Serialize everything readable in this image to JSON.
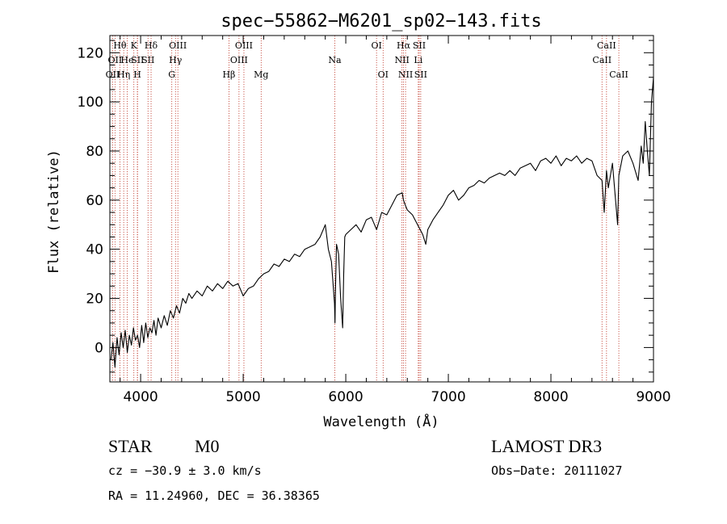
{
  "chart_data": {
    "type": "line",
    "title": "spec−55862−M6201_sp02−143.fits",
    "xlabel": "Wavelength (Å)",
    "ylabel": "Flux (relative)",
    "xlim": [
      3700,
      9000
    ],
    "ylim": [
      -14,
      127
    ],
    "xticks": [
      {
        "value": 4000,
        "label": "4000"
      },
      {
        "value": 5000,
        "label": "5000"
      },
      {
        "value": 6000,
        "label": "6000"
      },
      {
        "value": 7000,
        "label": "7000"
      },
      {
        "value": 8000,
        "label": "8000"
      },
      {
        "value": 9000,
        "label": "9000"
      }
    ],
    "yticks": [
      {
        "value": 0,
        "label": "0"
      },
      {
        "value": 20,
        "label": "20"
      },
      {
        "value": 40,
        "label": "40"
      },
      {
        "value": 60,
        "label": "60"
      },
      {
        "value": 80,
        "label": "80"
      },
      {
        "value": 100,
        "label": "100"
      },
      {
        "value": 120,
        "label": "120"
      }
    ],
    "x_minor_step": 200,
    "y_minor_step": 5,
    "line_color": "#000000",
    "marker_color": "#c0392b",
    "series": [
      {
        "name": "flux",
        "x": [
          3710,
          3730,
          3750,
          3770,
          3790,
          3810,
          3830,
          3850,
          3870,
          3890,
          3910,
          3930,
          3950,
          3970,
          3990,
          4010,
          4030,
          4050,
          4070,
          4090,
          4110,
          4130,
          4150,
          4170,
          4200,
          4230,
          4260,
          4290,
          4320,
          4350,
          4380,
          4410,
          4440,
          4470,
          4500,
          4550,
          4600,
          4650,
          4700,
          4750,
          4800,
          4850,
          4900,
          4950,
          5000,
          5050,
          5100,
          5150,
          5200,
          5250,
          5300,
          5350,
          5400,
          5450,
          5500,
          5550,
          5600,
          5650,
          5700,
          5750,
          5800,
          5830,
          5860,
          5890,
          5895,
          5900,
          5910,
          5930,
          5950,
          5970,
          5980,
          5990,
          6000,
          6050,
          6100,
          6150,
          6200,
          6250,
          6300,
          6350,
          6400,
          6450,
          6500,
          6550,
          6563,
          6580,
          6600,
          6650,
          6700,
          6750,
          6780,
          6800,
          6850,
          6900,
          6950,
          7000,
          7050,
          7100,
          7150,
          7200,
          7250,
          7300,
          7350,
          7400,
          7450,
          7500,
          7550,
          7600,
          7650,
          7700,
          7750,
          7800,
          7850,
          7900,
          7950,
          8000,
          8050,
          8100,
          8150,
          8200,
          8250,
          8300,
          8350,
          8400,
          8450,
          8498,
          8520,
          8542,
          8560,
          8600,
          8650,
          8662,
          8700,
          8750,
          8800,
          8850,
          8880,
          8900,
          8920,
          8940,
          8960,
          8980,
          9000
        ],
        "y": [
          -5,
          2,
          -8,
          4,
          -3,
          6,
          0,
          7,
          -2,
          5,
          1,
          8,
          3,
          5,
          0,
          9,
          2,
          10,
          4,
          8,
          6,
          11,
          5,
          12,
          8,
          13,
          9,
          15,
          12,
          17,
          14,
          20,
          18,
          22,
          20,
          23,
          21,
          25,
          23,
          26,
          24,
          27,
          25,
          26,
          21,
          24,
          25,
          28,
          30,
          31,
          34,
          33,
          36,
          35,
          38,
          37,
          40,
          41,
          42,
          45,
          50,
          40,
          35,
          18,
          10,
          25,
          42,
          38,
          20,
          8,
          30,
          45,
          46,
          48,
          50,
          47,
          52,
          53,
          48,
          55,
          54,
          58,
          62,
          63,
          60,
          58,
          56,
          54,
          50,
          46,
          42,
          48,
          52,
          55,
          58,
          62,
          64,
          60,
          62,
          65,
          66,
          68,
          67,
          69,
          70,
          71,
          70,
          72,
          70,
          73,
          74,
          75,
          72,
          76,
          77,
          75,
          78,
          74,
          77,
          76,
          78,
          75,
          77,
          76,
          70,
          68,
          55,
          72,
          65,
          75,
          50,
          70,
          78,
          80,
          75,
          68,
          82,
          75,
          92,
          80,
          70,
          100,
          110
        ]
      }
    ],
    "lines": [
      {
        "x": 3727,
        "label": "OII",
        "row": 2
      },
      {
        "x": 3750,
        "label": "OII",
        "row": 1
      },
      {
        "x": 3798,
        "label": "Hθ",
        "row": 0
      },
      {
        "x": 3835,
        "label": "Hη",
        "row": 2
      },
      {
        "x": 3869,
        "label": "He",
        "row": 1
      },
      {
        "x": 3934,
        "label": "K",
        "row": 0
      },
      {
        "x": 3968,
        "label": "H",
        "row": 2
      },
      {
        "x": 3970,
        "label": "SII",
        "row": 1
      },
      {
        "x": 4102,
        "label": "Hδ",
        "row": 0
      },
      {
        "x": 4072,
        "label": "SII",
        "row": 1
      },
      {
        "x": 4304,
        "label": "G",
        "row": 2
      },
      {
        "x": 4340,
        "label": "Hγ",
        "row": 1
      },
      {
        "x": 4363,
        "label": "OIII",
        "row": 0
      },
      {
        "x": 4861,
        "label": "Hβ",
        "row": 2
      },
      {
        "x": 4959,
        "label": "OIII",
        "row": 1
      },
      {
        "x": 5007,
        "label": "OIII",
        "row": 0
      },
      {
        "x": 5175,
        "label": "Mg",
        "row": 2
      },
      {
        "x": 5893,
        "label": "Na",
        "row": 1
      },
      {
        "x": 6300,
        "label": "OI",
        "row": 0
      },
      {
        "x": 6364,
        "label": "OI",
        "row": 2
      },
      {
        "x": 6548,
        "label": "NII",
        "row": 1
      },
      {
        "x": 6563,
        "label": "Hα",
        "row": 0
      },
      {
        "x": 6583,
        "label": "NII",
        "row": 2
      },
      {
        "x": 6707,
        "label": "Li",
        "row": 1
      },
      {
        "x": 6716,
        "label": "SII",
        "row": 0
      },
      {
        "x": 6731,
        "label": "SII",
        "row": 2
      },
      {
        "x": 8498,
        "label": "CaII",
        "row": 1
      },
      {
        "x": 8542,
        "label": "CaII",
        "row": 0
      },
      {
        "x": 8662,
        "label": "CaII",
        "row": 2
      }
    ]
  },
  "info": {
    "object_class": "STAR",
    "subclass": "M0",
    "survey": "LAMOST DR3",
    "velocity": "cz = −30.9 ± 3.0 km/s",
    "obs_date": "Obs−Date: 20111027",
    "coords": "RA =  11.24960, DEC =  36.38365"
  }
}
